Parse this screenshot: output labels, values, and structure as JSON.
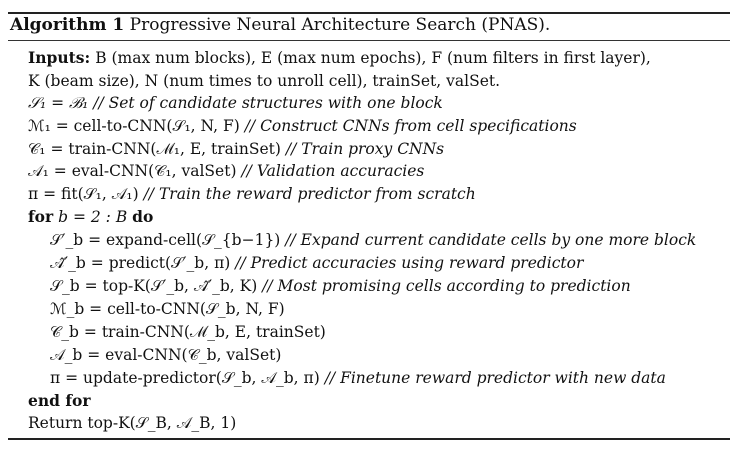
{
  "algorithm": {
    "label": "Algorithm 1",
    "title": "Progressive Neural Architecture Search (PNAS)."
  },
  "lines": [
    {
      "kw": "Inputs:",
      "text": "B (max num blocks), E (max num epochs), F (num filters in first layer),"
    },
    {
      "kw": "",
      "text": "K (beam size), N (num times to unroll cell), trainSet, valSet."
    },
    {
      "kw": "",
      "code": "𝒮₁ = ℬ₁",
      "comment": "// Set of candidate structures with one block"
    },
    {
      "kw": "",
      "code": "ℳ₁ = cell-to-CNN(𝒮₁, N, F)",
      "comment": "// Construct CNNs from cell specifications"
    },
    {
      "kw": "",
      "code": "𝒞₁ = train-CNN(ℳ₁, E, trainSet)",
      "comment": "// Train proxy CNNs"
    },
    {
      "kw": "",
      "code": "𝒜₁ = eval-CNN(𝒞₁, valSet)",
      "comment": "// Validation accuracies"
    },
    {
      "kw": "",
      "code": "π = fit(𝒮₁, 𝒜₁)",
      "comment": "// Train the reward predictor from scratch"
    },
    {
      "kw": "for",
      "code": "b = 2 : B",
      "kw2": "do"
    },
    {
      "kw": "",
      "code": "𝒮′_b = expand-cell(𝒮_{b−1})",
      "comment": "// Expand current candidate cells by one more block"
    },
    {
      "kw": "",
      "code": "𝒜̂′_b = predict(𝒮′_b, π)",
      "comment": "// Predict accuracies using reward predictor"
    },
    {
      "kw": "",
      "code": "𝒮_b = top-K(𝒮′_b, 𝒜̂′_b, K)",
      "comment": "// Most promising cells according to prediction"
    },
    {
      "kw": "",
      "code": "ℳ_b = cell-to-CNN(𝒮_b, N, F)",
      "comment": ""
    },
    {
      "kw": "",
      "code": "𝒞_b = train-CNN(ℳ_b, E, trainSet)",
      "comment": ""
    },
    {
      "kw": "",
      "code": "𝒜_b = eval-CNN(𝒞_b, valSet)",
      "comment": ""
    },
    {
      "kw": "",
      "code": "π = update-predictor(𝒮_b, 𝒜_b, π)",
      "comment": "// Finetune reward predictor with new data"
    },
    {
      "kw": "end for",
      "code": "",
      "comment": ""
    },
    {
      "kw": "",
      "code": "Return top-K(𝒮_B, 𝒜_B, 1)",
      "comment": ""
    }
  ]
}
